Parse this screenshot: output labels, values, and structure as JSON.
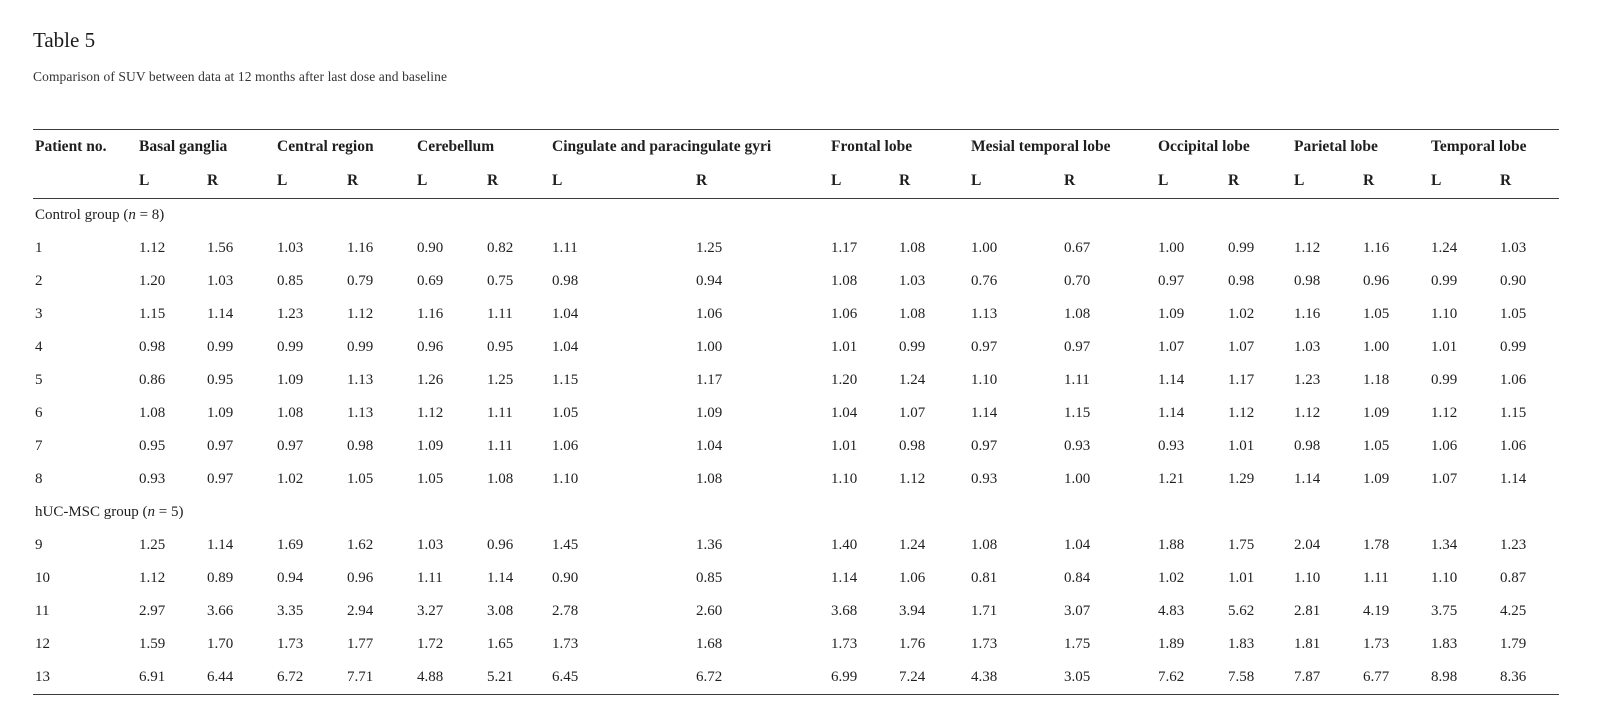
{
  "page": {
    "title": "Table 5",
    "caption": "Comparison of SUV between data at 12 months after last dose and baseline"
  },
  "table": {
    "patient_col_header": "Patient no.",
    "column_groups": [
      {
        "label": "Basal ganglia"
      },
      {
        "label": "Central region"
      },
      {
        "label": "Cerebellum"
      },
      {
        "label": "Cingulate and paracingulate gyri"
      },
      {
        "label": "Frontal lobe"
      },
      {
        "label": "Mesial temporal lobe"
      },
      {
        "label": "Occipital lobe"
      },
      {
        "label": "Parietal lobe"
      },
      {
        "label": "Temporal lobe"
      }
    ],
    "subheaders": [
      "L",
      "R"
    ],
    "groups": [
      {
        "label_prefix": "Control group (",
        "label_italic": "n",
        "label_suffix": " = 8)",
        "rows": [
          {
            "patient": "1",
            "values": [
              "1.12",
              "1.56",
              "1.03",
              "1.16",
              "0.90",
              "0.82",
              "1.11",
              "1.25",
              "1.17",
              "1.08",
              "1.00",
              "0.67",
              "1.00",
              "0.99",
              "1.12",
              "1.16",
              "1.24",
              "1.03"
            ]
          },
          {
            "patient": "2",
            "values": [
              "1.20",
              "1.03",
              "0.85",
              "0.79",
              "0.69",
              "0.75",
              "0.98",
              "0.94",
              "1.08",
              "1.03",
              "0.76",
              "0.70",
              "0.97",
              "0.98",
              "0.98",
              "0.96",
              "0.99",
              "0.90"
            ]
          },
          {
            "patient": "3",
            "values": [
              "1.15",
              "1.14",
              "1.23",
              "1.12",
              "1.16",
              "1.11",
              "1.04",
              "1.06",
              "1.06",
              "1.08",
              "1.13",
              "1.08",
              "1.09",
              "1.02",
              "1.16",
              "1.05",
              "1.10",
              "1.05"
            ]
          },
          {
            "patient": "4",
            "values": [
              "0.98",
              "0.99",
              "0.99",
              "0.99",
              "0.96",
              "0.95",
              "1.04",
              "1.00",
              "1.01",
              "0.99",
              "0.97",
              "0.97",
              "1.07",
              "1.07",
              "1.03",
              "1.00",
              "1.01",
              "0.99"
            ]
          },
          {
            "patient": "5",
            "values": [
              "0.86",
              "0.95",
              "1.09",
              "1.13",
              "1.26",
              "1.25",
              "1.15",
              "1.17",
              "1.20",
              "1.24",
              "1.10",
              "1.11",
              "1.14",
              "1.17",
              "1.23",
              "1.18",
              "0.99",
              "1.06"
            ]
          },
          {
            "patient": "6",
            "values": [
              "1.08",
              "1.09",
              "1.08",
              "1.13",
              "1.12",
              "1.11",
              "1.05",
              "1.09",
              "1.04",
              "1.07",
              "1.14",
              "1.15",
              "1.14",
              "1.12",
              "1.12",
              "1.09",
              "1.12",
              "1.15"
            ]
          },
          {
            "patient": "7",
            "values": [
              "0.95",
              "0.97",
              "0.97",
              "0.98",
              "1.09",
              "1.11",
              "1.06",
              "1.04",
              "1.01",
              "0.98",
              "0.97",
              "0.93",
              "0.93",
              "1.01",
              "0.98",
              "1.05",
              "1.06",
              "1.06"
            ]
          },
          {
            "patient": "8",
            "values": [
              "0.93",
              "0.97",
              "1.02",
              "1.05",
              "1.05",
              "1.08",
              "1.10",
              "1.08",
              "1.10",
              "1.12",
              "0.93",
              "1.00",
              "1.21",
              "1.29",
              "1.14",
              "1.09",
              "1.07",
              "1.14"
            ]
          }
        ]
      },
      {
        "label_prefix": "hUC-MSC group (",
        "label_italic": "n",
        "label_suffix": " = 5)",
        "rows": [
          {
            "patient": "9",
            "values": [
              "1.25",
              "1.14",
              "1.69",
              "1.62",
              "1.03",
              "0.96",
              "1.45",
              "1.36",
              "1.40",
              "1.24",
              "1.08",
              "1.04",
              "1.88",
              "1.75",
              "2.04",
              "1.78",
              "1.34",
              "1.23"
            ]
          },
          {
            "patient": "10",
            "values": [
              "1.12",
              "0.89",
              "0.94",
              "0.96",
              "1.11",
              "1.14",
              "0.90",
              "0.85",
              "1.14",
              "1.06",
              "0.81",
              "0.84",
              "1.02",
              "1.01",
              "1.10",
              "1.11",
              "1.10",
              "0.87"
            ]
          },
          {
            "patient": "11",
            "values": [
              "2.97",
              "3.66",
              "3.35",
              "2.94",
              "3.27",
              "3.08",
              "2.78",
              "2.60",
              "3.68",
              "3.94",
              "1.71",
              "3.07",
              "4.83",
              "5.62",
              "2.81",
              "4.19",
              "3.75",
              "4.25"
            ]
          },
          {
            "patient": "12",
            "values": [
              "1.59",
              "1.70",
              "1.73",
              "1.77",
              "1.72",
              "1.65",
              "1.73",
              "1.68",
              "1.73",
              "1.76",
              "1.73",
              "1.75",
              "1.89",
              "1.83",
              "1.81",
              "1.73",
              "1.83",
              "1.79"
            ]
          },
          {
            "patient": "13",
            "values": [
              "6.91",
              "6.44",
              "6.72",
              "7.71",
              "4.88",
              "5.21",
              "6.45",
              "6.72",
              "6.99",
              "7.24",
              "4.38",
              "3.05",
              "7.62",
              "7.58",
              "7.87",
              "6.77",
              "8.98",
              "8.36"
            ]
          }
        ]
      }
    ]
  }
}
